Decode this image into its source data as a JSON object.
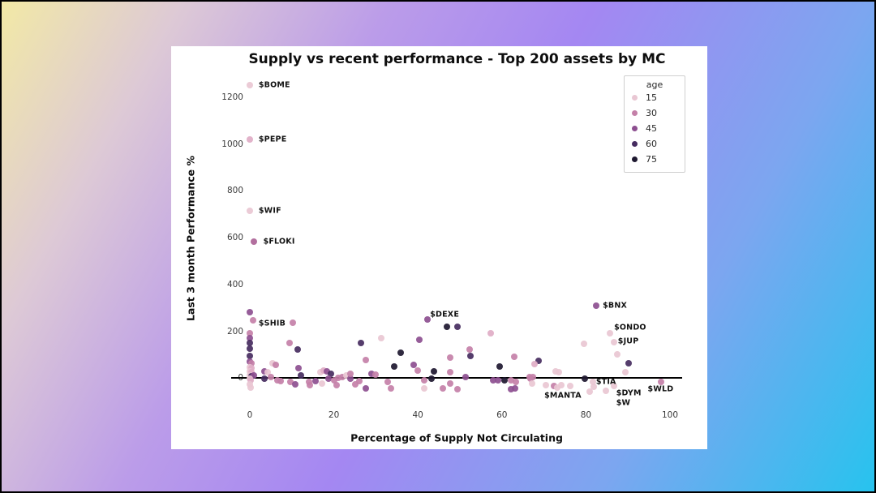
{
  "page": {
    "frame_color": "#000000",
    "background_gradient": [
      "#f2e9a6",
      "#bb9ce9",
      "#a487f2",
      "#27c3ee"
    ],
    "card_color": "#ffffff"
  },
  "chart": {
    "title": "Supply vs recent performance - Top 200 assets by MC",
    "xlabel": "Percentage of Supply Not Circulating",
    "ylabel": "Last 3 month Performance %"
  },
  "legend": {
    "title": "age",
    "entries": [
      {
        "label": "15",
        "color": "#e9c7d3"
      },
      {
        "label": "30",
        "color": "#c480a8"
      },
      {
        "label": "45",
        "color": "#8d4f90"
      },
      {
        "label": "60",
        "color": "#462c60"
      },
      {
        "label": "75",
        "color": "#1e1830"
      }
    ]
  },
  "chart_data": {
    "type": "scatter",
    "title": "Supply vs recent performance - Top 200 assets by MC",
    "xlabel": "Percentage of Supply Not Circulating",
    "ylabel": "Last 3 month Performance %",
    "xlim": [
      -4,
      103
    ],
    "ylim": [
      -120,
      1330
    ],
    "xticks": [
      0,
      20,
      40,
      60,
      80,
      100
    ],
    "yticks": [
      0,
      200,
      400,
      600,
      800,
      1000,
      1200
    ],
    "grid": false,
    "zero_line": true,
    "legend_position": "upper right",
    "hue_field": "age",
    "age_colors": {
      "15": "#e9c7d3",
      "20": "#dfadc6",
      "30": "#c480a8",
      "40": "#ab6396",
      "45": "#8d4f90",
      "60": "#462c60",
      "75": "#1e1830"
    },
    "points": [
      [
        0,
        1250,
        15
      ],
      [
        0,
        1019,
        20
      ],
      [
        0,
        713,
        15
      ],
      [
        1,
        583,
        40
      ],
      [
        0,
        281,
        45
      ],
      [
        0.7,
        248,
        30
      ],
      [
        0,
        193,
        30
      ],
      [
        0,
        170,
        45
      ],
      [
        0,
        150,
        60
      ],
      [
        0,
        127,
        60
      ],
      [
        0,
        94,
        60
      ],
      [
        0,
        70,
        45
      ],
      [
        0.3,
        62,
        30
      ],
      [
        0,
        47,
        15
      ],
      [
        0.4,
        43,
        20
      ],
      [
        0,
        28,
        15
      ],
      [
        0.3,
        24,
        20
      ],
      [
        0,
        10,
        15
      ],
      [
        0.4,
        8,
        60
      ],
      [
        1,
        13,
        45
      ],
      [
        0,
        -4,
        15
      ],
      [
        0.2,
        -10,
        20
      ],
      [
        0,
        -27,
        15
      ],
      [
        0.1,
        -42,
        15
      ],
      [
        3.4,
        28,
        45
      ],
      [
        4.2,
        25,
        15
      ],
      [
        3.4,
        -4,
        60
      ],
      [
        5,
        5,
        30
      ],
      [
        5.4,
        63,
        15
      ],
      [
        6.2,
        58,
        30
      ],
      [
        6.5,
        -10,
        30
      ],
      [
        7.3,
        -14,
        30
      ],
      [
        10.3,
        238,
        30
      ],
      [
        9.5,
        151,
        30
      ],
      [
        11.4,
        122,
        60
      ],
      [
        11.6,
        44,
        45
      ],
      [
        12.2,
        12,
        60
      ],
      [
        9.6,
        -17,
        30
      ],
      [
        10.9,
        -26,
        45
      ],
      [
        14,
        -17,
        30
      ],
      [
        14.2,
        -29,
        30
      ],
      [
        15.7,
        -14,
        45
      ],
      [
        16.8,
        25,
        15
      ],
      [
        17.5,
        31,
        20
      ],
      [
        18.4,
        28,
        45
      ],
      [
        19.3,
        20,
        60
      ],
      [
        17.2,
        -22,
        15
      ],
      [
        18.7,
        -3,
        45
      ],
      [
        20.1,
        -10,
        30
      ],
      [
        20.7,
        -31,
        30
      ],
      [
        21,
        2,
        30
      ],
      [
        22,
        5,
        30
      ],
      [
        23,
        12,
        15
      ],
      [
        23.9,
        -3,
        45
      ],
      [
        24,
        17,
        30
      ],
      [
        25.1,
        -26,
        30
      ],
      [
        26.5,
        151,
        60
      ],
      [
        27.7,
        78,
        30
      ],
      [
        26,
        -14,
        30
      ],
      [
        27.7,
        -43,
        45
      ],
      [
        29,
        17,
        45
      ],
      [
        30,
        15,
        30
      ],
      [
        31.2,
        171,
        15
      ],
      [
        32.8,
        -17,
        30
      ],
      [
        33.5,
        -43,
        30
      ],
      [
        34.4,
        50,
        75
      ],
      [
        36,
        107,
        75
      ],
      [
        38.9,
        55,
        45
      ],
      [
        39.9,
        32,
        30
      ],
      [
        40.3,
        163,
        45
      ],
      [
        41.6,
        -10,
        30
      ],
      [
        41.6,
        -45,
        15
      ],
      [
        42.3,
        251,
        45
      ],
      [
        43.2,
        -2,
        75
      ],
      [
        43.9,
        29,
        75
      ],
      [
        45.9,
        -45,
        30
      ],
      [
        47,
        220,
        75
      ],
      [
        49.4,
        220,
        60
      ],
      [
        47.6,
        87,
        30
      ],
      [
        47.6,
        26,
        30
      ],
      [
        47.6,
        -22,
        30
      ],
      [
        49.4,
        -48,
        30
      ],
      [
        51.3,
        5,
        45
      ],
      [
        52.3,
        121,
        30
      ],
      [
        52.6,
        96,
        60
      ],
      [
        57.4,
        192,
        20
      ],
      [
        59.5,
        50,
        75
      ],
      [
        58,
        -10,
        45
      ],
      [
        59,
        -10,
        45
      ],
      [
        60.6,
        -10,
        75
      ],
      [
        62.2,
        -10,
        30
      ],
      [
        63.4,
        -17,
        30
      ],
      [
        62.2,
        -48,
        45
      ],
      [
        63.1,
        -45,
        45
      ],
      [
        63,
        90,
        30
      ],
      [
        66.6,
        5,
        30
      ],
      [
        67.4,
        3,
        30
      ],
      [
        66.7,
        -2,
        30
      ],
      [
        67.2,
        -22,
        15
      ],
      [
        68.8,
        75,
        60
      ],
      [
        67.7,
        59,
        20
      ],
      [
        70.5,
        -31,
        15
      ],
      [
        72.4,
        -34,
        30
      ],
      [
        72.7,
        29,
        15
      ],
      [
        73.5,
        24,
        15
      ],
      [
        73.2,
        -40,
        15
      ],
      [
        74.1,
        -29,
        15
      ],
      [
        76.3,
        -34,
        15
      ],
      [
        79.6,
        147,
        15
      ],
      [
        79.8,
        -2,
        75
      ],
      [
        81.6,
        -16,
        15
      ],
      [
        81.9,
        -37,
        15
      ],
      [
        80.8,
        -58,
        15
      ],
      [
        84.7,
        -54,
        15
      ],
      [
        86.6,
        -35,
        15
      ],
      [
        82.4,
        310,
        45
      ],
      [
        85.8,
        190,
        15
      ],
      [
        86.6,
        155,
        15
      ],
      [
        87.5,
        101,
        15
      ],
      [
        90.1,
        63,
        60
      ],
      [
        89.4,
        26,
        15
      ],
      [
        97.9,
        -18,
        30
      ]
    ],
    "annotations": [
      {
        "text": "$BOME",
        "x": 2.1,
        "y": 1251
      },
      {
        "text": "$PEPE",
        "x": 2.1,
        "y": 1019
      },
      {
        "text": "$WIF",
        "x": 2.1,
        "y": 713
      },
      {
        "text": "$FLOKI",
        "x": 3.2,
        "y": 583
      },
      {
        "text": "$SHIB",
        "x": 2.1,
        "y": 234
      },
      {
        "text": "$DEXE",
        "x": 42.9,
        "y": 271
      },
      {
        "text": "$BNX",
        "x": 84,
        "y": 309
      },
      {
        "text": "$ONDO",
        "x": 86.7,
        "y": 215
      },
      {
        "text": "$JUP",
        "x": 87.6,
        "y": 157
      },
      {
        "text": "$TIA",
        "x": 82.4,
        "y": -18
      },
      {
        "text": "$MANTA",
        "x": 70.1,
        "y": -75
      },
      {
        "text": "$DYM",
        "x": 87.2,
        "y": -64
      },
      {
        "text": "$W",
        "x": 87.2,
        "y": -106
      },
      {
        "text": "$WLD",
        "x": 94.7,
        "y": -48
      }
    ]
  }
}
